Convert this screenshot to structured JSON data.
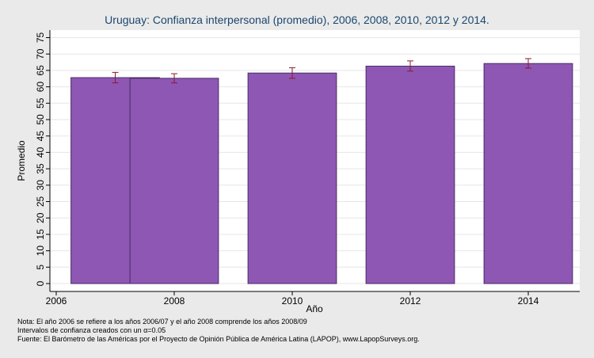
{
  "chart_data": {
    "type": "bar",
    "title": "Uruguay: Confianza interpersonal (promedio), 2006, 2008, 2010, 2012 y 2014.",
    "xlabel": "Año",
    "ylabel": "Promedio",
    "xlim": [
      2006,
      2015
    ],
    "ylim": [
      0,
      77
    ],
    "xticks": [
      2006,
      2008,
      2010,
      2012,
      2014
    ],
    "yticks": [
      0,
      5,
      10,
      15,
      20,
      25,
      30,
      35,
      40,
      45,
      50,
      55,
      60,
      65,
      70,
      75
    ],
    "grid": true,
    "bars": [
      {
        "x_start": 2006.25,
        "x_end": 2007.75,
        "value": 62.8,
        "ci_low": 61.2,
        "ci_high": 64.4
      },
      {
        "x_start": 2007.25,
        "x_end": 2008.75,
        "value": 62.6,
        "ci_low": 61.2,
        "ci_high": 64.0
      },
      {
        "x_start": 2009.25,
        "x_end": 2010.75,
        "value": 64.2,
        "ci_low": 62.6,
        "ci_high": 65.8
      },
      {
        "x_start": 2011.25,
        "x_end": 2012.75,
        "value": 66.3,
        "ci_low": 64.8,
        "ci_high": 67.9
      },
      {
        "x_start": 2013.25,
        "x_end": 2014.75,
        "value": 67.1,
        "ci_low": 65.7,
        "ci_high": 68.6
      }
    ],
    "colors": {
      "bar_fill": "#8e57b4",
      "bar_edge": "#4a2a66",
      "error_bar": "#8b1a2a",
      "grid": "#e6e6e6",
      "title": "#1a476f"
    }
  },
  "notes": [
    "Nota: El año 2006 se refiere a los años 2006/07 y el año 2008 comprende los años 2008/09",
    "Intervalos de confianza creados con un α=0.05",
    "Fuente: El Barómetro de las Américas por el Proyecto de Opinión Pública de América Latina (LAPOP), www.LapopSurveys.org."
  ]
}
